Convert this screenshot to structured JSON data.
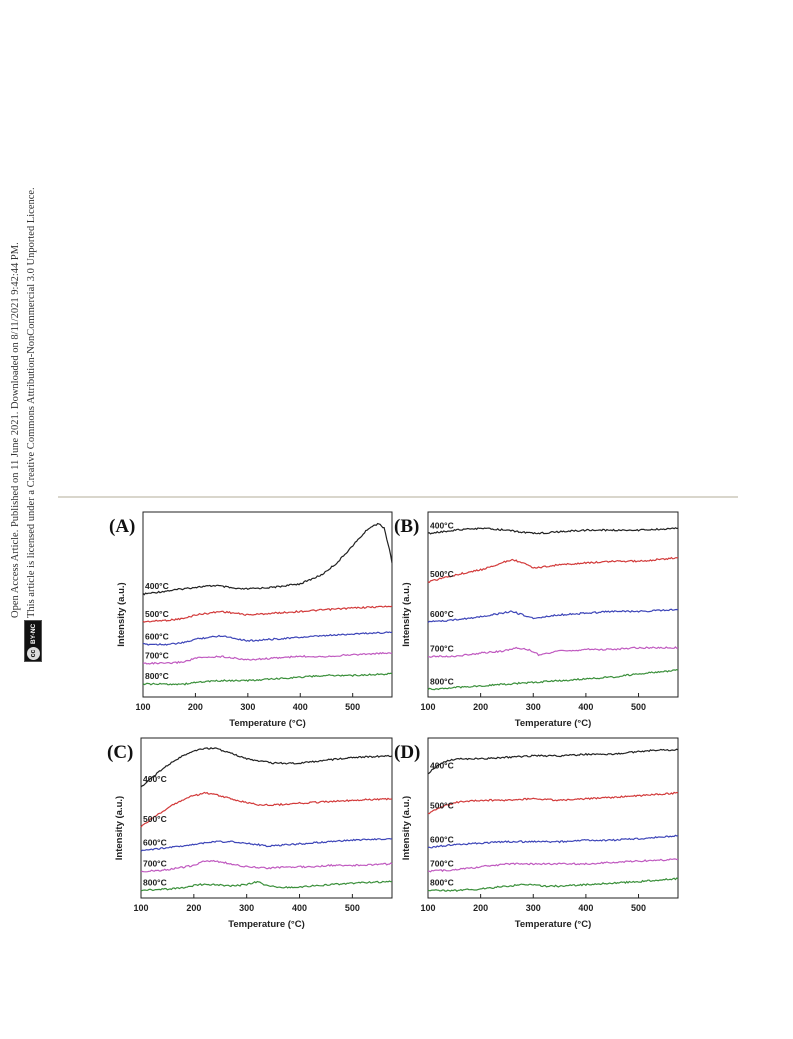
{
  "sidebar_notice": {
    "line1": "Open Access Article. Published on 11 June 2021. Downloaded on 8/11/2021 9:42:44 PM.",
    "line2": "This article is licensed under a Creative Commons Attribution-NonCommercial 3.0 Unported Licence.",
    "badge_cc": "cc",
    "badge_text": "BY-NC"
  },
  "chart_data": [
    {
      "type": "line",
      "panel": "(A)",
      "xlabel": "Temperature (°C)",
      "ylabel": "Intensity (a.u.)",
      "xlim": [
        100,
        575
      ],
      "ylim": [
        0,
        100
      ],
      "xticks": [
        100,
        200,
        300,
        400,
        500
      ],
      "series": [
        {
          "name": "400°C",
          "color": "#222222",
          "x": [
            100,
            150,
            200,
            240,
            280,
            300,
            350,
            400,
            440,
            470,
            500,
            530,
            550,
            560,
            570,
            575
          ],
          "y": [
            56,
            58,
            60,
            61,
            59,
            59,
            60,
            62,
            67,
            74,
            84,
            94,
            97,
            94,
            82,
            74
          ]
        },
        {
          "name": "500°C",
          "color": "#d23a3a",
          "x": [
            100,
            150,
            180,
            200,
            250,
            300,
            350,
            400,
            450,
            500,
            575
          ],
          "y": [
            40,
            41,
            42,
            44,
            46,
            44,
            45,
            46,
            47,
            48,
            49
          ]
        },
        {
          "name": "600°C",
          "color": "#3d45b8",
          "x": [
            100,
            150,
            180,
            200,
            250,
            300,
            350,
            400,
            450,
            500,
            575
          ],
          "y": [
            27,
            27,
            28,
            30,
            32,
            29,
            30,
            31,
            32,
            33,
            34
          ]
        },
        {
          "name": "700°C",
          "color": "#c05ac0",
          "x": [
            100,
            150,
            180,
            200,
            250,
            300,
            350,
            400,
            450,
            500,
            575
          ],
          "y": [
            16,
            16,
            17,
            19,
            20,
            18,
            19,
            20,
            20,
            21,
            22
          ]
        },
        {
          "name": "800°C",
          "color": "#3a8f3a",
          "x": [
            100,
            150,
            180,
            200,
            250,
            300,
            350,
            400,
            450,
            500,
            575
          ],
          "y": [
            4,
            4,
            4,
            5,
            6,
            6,
            7,
            8,
            9,
            9,
            10
          ]
        }
      ]
    },
    {
      "type": "line",
      "panel": "(B)",
      "xlabel": "Temperature (°C)",
      "ylabel": "Intensity (a.u.)",
      "xlim": [
        100,
        575
      ],
      "ylim": [
        0,
        100
      ],
      "xticks": [
        100,
        200,
        300,
        400,
        500
      ],
      "series": [
        {
          "name": "400°C",
          "color": "#222222",
          "x": [
            100,
            150,
            200,
            250,
            300,
            350,
            400,
            450,
            500,
            575
          ],
          "y": [
            91,
            93,
            94,
            93,
            91,
            92,
            93,
            93,
            93,
            94
          ]
        },
        {
          "name": "500°C",
          "color": "#d23a3a",
          "x": [
            100,
            150,
            200,
            230,
            260,
            280,
            300,
            350,
            400,
            450,
            500,
            575
          ],
          "y": [
            63,
            67,
            70,
            73,
            76,
            74,
            71,
            73,
            74,
            75,
            75,
            77
          ]
        },
        {
          "name": "600°C",
          "color": "#3d45b8",
          "x": [
            100,
            150,
            200,
            240,
            260,
            280,
            300,
            350,
            400,
            450,
            500,
            575
          ],
          "y": [
            40,
            41,
            43,
            45,
            46,
            44,
            42,
            44,
            45,
            46,
            46,
            47
          ]
        },
        {
          "name": "700°C",
          "color": "#c05ac0",
          "x": [
            100,
            150,
            200,
            240,
            270,
            290,
            310,
            350,
            400,
            450,
            500,
            575
          ],
          "y": [
            20,
            20,
            22,
            23,
            25,
            24,
            21,
            23,
            24,
            24,
            25,
            25
          ]
        },
        {
          "name": "800°C",
          "color": "#3a8f3a",
          "x": [
            100,
            150,
            200,
            250,
            300,
            350,
            400,
            450,
            500,
            575
          ],
          "y": [
            1,
            2,
            3,
            4,
            5,
            6,
            7,
            8,
            10,
            12
          ]
        }
      ]
    },
    {
      "type": "line",
      "panel": "(C)",
      "xlabel": "Temperature (°C)",
      "ylabel": "Intensity (a.u.)",
      "xlim": [
        100,
        575
      ],
      "ylim": [
        0,
        100
      ],
      "xticks": [
        100,
        200,
        300,
        400,
        500
      ],
      "series": [
        {
          "name": "400°C",
          "color": "#222222",
          "x": [
            100,
            130,
            160,
            190,
            220,
            240,
            260,
            300,
            350,
            400,
            450,
            500,
            575
          ],
          "y": [
            71,
            80,
            88,
            94,
            97,
            97,
            95,
            90,
            87,
            87,
            89,
            91,
            92
          ]
        },
        {
          "name": "500°C",
          "color": "#d23a3a",
          "x": [
            100,
            130,
            160,
            190,
            220,
            250,
            280,
            320,
            360,
            400,
            450,
            500,
            575
          ],
          "y": [
            44,
            52,
            59,
            64,
            67,
            65,
            62,
            59,
            59,
            60,
            61,
            62,
            63
          ]
        },
        {
          "name": "600°C",
          "color": "#3d45b8",
          "x": [
            100,
            150,
            200,
            240,
            270,
            300,
            340,
            380,
            420,
            460,
            500,
            575
          ],
          "y": [
            28,
            30,
            32,
            34,
            34,
            33,
            31,
            32,
            33,
            34,
            35,
            36
          ]
        },
        {
          "name": "700°C",
          "color": "#c05ac0",
          "x": [
            100,
            150,
            200,
            220,
            240,
            270,
            300,
            340,
            380,
            420,
            460,
            500,
            575
          ],
          "y": [
            14,
            15,
            18,
            21,
            21,
            19,
            17,
            16,
            17,
            17,
            18,
            18,
            19
          ]
        },
        {
          "name": "800°C",
          "color": "#3a8f3a",
          "x": [
            100,
            150,
            180,
            210,
            240,
            270,
            300,
            320,
            340,
            380,
            420,
            460,
            500,
            575
          ],
          "y": [
            1,
            2,
            3,
            5,
            5,
            4,
            5,
            7,
            4,
            3,
            4,
            5,
            6,
            7
          ]
        }
      ]
    },
    {
      "type": "line",
      "panel": "(D)",
      "xlabel": "Temperature (°C)",
      "ylabel": "Intensity (a.u.)",
      "xlim": [
        100,
        575
      ],
      "ylim": [
        0,
        100
      ],
      "xticks": [
        100,
        200,
        300,
        400,
        500
      ],
      "series": [
        {
          "name": "400°C",
          "color": "#222222",
          "x": [
            100,
            120,
            140,
            160,
            200,
            250,
            300,
            350,
            400,
            450,
            500,
            540,
            575
          ],
          "y": [
            80,
            86,
            89,
            90,
            90,
            91,
            92,
            92,
            93,
            93,
            95,
            96,
            96
          ]
        },
        {
          "name": "500°C",
          "color": "#d23a3a",
          "x": [
            100,
            130,
            160,
            200,
            250,
            300,
            350,
            400,
            450,
            500,
            575
          ],
          "y": [
            53,
            58,
            61,
            62,
            62,
            63,
            62,
            63,
            64,
            65,
            67
          ]
        },
        {
          "name": "600°C",
          "color": "#3d45b8",
          "x": [
            100,
            150,
            200,
            250,
            300,
            350,
            400,
            450,
            500,
            575
          ],
          "y": [
            30,
            32,
            33,
            34,
            34,
            34,
            35,
            35,
            36,
            38
          ]
        },
        {
          "name": "700°C",
          "color": "#c05ac0",
          "x": [
            100,
            150,
            200,
            250,
            300,
            350,
            400,
            450,
            500,
            575
          ],
          "y": [
            14,
            15,
            17,
            19,
            19,
            19,
            19,
            20,
            21,
            22
          ]
        },
        {
          "name": "800°C",
          "color": "#3a8f3a",
          "x": [
            100,
            150,
            200,
            250,
            280,
            300,
            320,
            350,
            400,
            450,
            500,
            575
          ],
          "y": [
            1,
            1,
            2,
            4,
            5,
            5,
            4,
            4,
            5,
            6,
            7,
            9
          ]
        }
      ]
    }
  ]
}
